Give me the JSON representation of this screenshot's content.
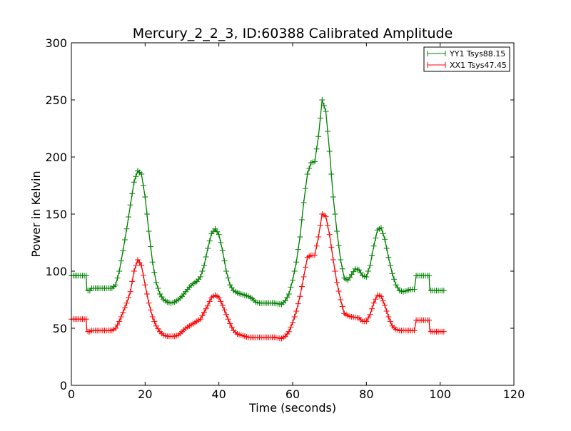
{
  "chart_data": {
    "type": "line",
    "title": "Mercury_2_2_3, ID:60388 Calibrated Amplitude",
    "xlabel": "Time (seconds)",
    "ylabel": "Power in Kelvin",
    "xlim": [
      0,
      120
    ],
    "ylim": [
      0,
      300
    ],
    "xticks": [
      0,
      20,
      40,
      60,
      80,
      100,
      120
    ],
    "yticks": [
      0,
      50,
      100,
      150,
      200,
      250,
      300
    ],
    "xtick_labels": [
      "0",
      "20",
      "40",
      "60",
      "80",
      "100",
      "120"
    ],
    "ytick_labels": [
      "0",
      "50",
      "100",
      "150",
      "200",
      "250",
      "300"
    ],
    "grid": false,
    "legend_position": "top-right",
    "marker": "+",
    "series": [
      {
        "name": "YY1 Tsys88.15",
        "color": "#008000",
        "points": [
          [
            0,
            96
          ],
          [
            4,
            96
          ],
          [
            4.2,
            83
          ],
          [
            5,
            83
          ],
          [
            5.3,
            85
          ],
          [
            11,
            85
          ],
          [
            12,
            88
          ],
          [
            13,
            100
          ],
          [
            14,
            118
          ],
          [
            15,
            137
          ],
          [
            16,
            158
          ],
          [
            17,
            178
          ],
          [
            18,
            188
          ],
          [
            19,
            185
          ],
          [
            20,
            165
          ],
          [
            21,
            135
          ],
          [
            22,
            108
          ],
          [
            23,
            90
          ],
          [
            24,
            80
          ],
          [
            25,
            75
          ],
          [
            26,
            73
          ],
          [
            27,
            72
          ],
          [
            28,
            73
          ],
          [
            29,
            75
          ],
          [
            30,
            78
          ],
          [
            31,
            82
          ],
          [
            32,
            86
          ],
          [
            33,
            89
          ],
          [
            34,
            91
          ],
          [
            35,
            95
          ],
          [
            36,
            105
          ],
          [
            37,
            120
          ],
          [
            38,
            133
          ],
          [
            39,
            137
          ],
          [
            40,
            132
          ],
          [
            41,
            118
          ],
          [
            42,
            100
          ],
          [
            43,
            88
          ],
          [
            44,
            83
          ],
          [
            45,
            81
          ],
          [
            46,
            80
          ],
          [
            47,
            79
          ],
          [
            48,
            78
          ],
          [
            49,
            76
          ],
          [
            50,
            73
          ],
          [
            51,
            72
          ],
          [
            55,
            72
          ],
          [
            57,
            71
          ],
          [
            58,
            74
          ],
          [
            59,
            80
          ],
          [
            60,
            92
          ],
          [
            61,
            108
          ],
          [
            62,
            130
          ],
          [
            63,
            160
          ],
          [
            64,
            185
          ],
          [
            65,
            195
          ],
          [
            66,
            196
          ],
          [
            67,
            218
          ],
          [
            68,
            250
          ],
          [
            69,
            240
          ],
          [
            70,
            205
          ],
          [
            71,
            165
          ],
          [
            72,
            135
          ],
          [
            73,
            110
          ],
          [
            74,
            94
          ],
          [
            75,
            92
          ],
          [
            76,
            97
          ],
          [
            77,
            102
          ],
          [
            78,
            101
          ],
          [
            79,
            96
          ],
          [
            80,
            95
          ],
          [
            81,
            105
          ],
          [
            82,
            122
          ],
          [
            83,
            136
          ],
          [
            84,
            138
          ],
          [
            85,
            128
          ],
          [
            86,
            112
          ],
          [
            87,
            98
          ],
          [
            88,
            88
          ],
          [
            89,
            83
          ],
          [
            90,
            82
          ],
          [
            92,
            84
          ],
          [
            93,
            84
          ],
          [
            93.5,
            96
          ],
          [
            97,
            96
          ],
          [
            97.2,
            83
          ],
          [
            101,
            83
          ]
        ]
      },
      {
        "name": "XX1 Tsys47.45",
        "color": "#ff0000",
        "points": [
          [
            0,
            58
          ],
          [
            4,
            58
          ],
          [
            4.2,
            47
          ],
          [
            5,
            47
          ],
          [
            5.3,
            48
          ],
          [
            11,
            48
          ],
          [
            12,
            50
          ],
          [
            13,
            56
          ],
          [
            14,
            64
          ],
          [
            15,
            72
          ],
          [
            16,
            82
          ],
          [
            17,
            100
          ],
          [
            18,
            110
          ],
          [
            19,
            105
          ],
          [
            20,
            88
          ],
          [
            21,
            72
          ],
          [
            22,
            60
          ],
          [
            23,
            52
          ],
          [
            24,
            47
          ],
          [
            25,
            44
          ],
          [
            26,
            43
          ],
          [
            28,
            43
          ],
          [
            29,
            44
          ],
          [
            30,
            47
          ],
          [
            31,
            50
          ],
          [
            32,
            52
          ],
          [
            33,
            54
          ],
          [
            34,
            56
          ],
          [
            35,
            58
          ],
          [
            36,
            64
          ],
          [
            37,
            70
          ],
          [
            38,
            77
          ],
          [
            39,
            79
          ],
          [
            40,
            77
          ],
          [
            41,
            70
          ],
          [
            42,
            62
          ],
          [
            43,
            54
          ],
          [
            44,
            48
          ],
          [
            45,
            45
          ],
          [
            46,
            44
          ],
          [
            47,
            43
          ],
          [
            48,
            42
          ],
          [
            55,
            42
          ],
          [
            57,
            41
          ],
          [
            58,
            43
          ],
          [
            59,
            47
          ],
          [
            60,
            55
          ],
          [
            61,
            65
          ],
          [
            62,
            78
          ],
          [
            63,
            95
          ],
          [
            64,
            112
          ],
          [
            65,
            114
          ],
          [
            66,
            114
          ],
          [
            67,
            130
          ],
          [
            68,
            150
          ],
          [
            69,
            148
          ],
          [
            70,
            132
          ],
          [
            71,
            110
          ],
          [
            72,
            90
          ],
          [
            73,
            75
          ],
          [
            74,
            63
          ],
          [
            75,
            61
          ],
          [
            76,
            60
          ],
          [
            78,
            59
          ],
          [
            79,
            56
          ],
          [
            80,
            56
          ],
          [
            81,
            62
          ],
          [
            82,
            72
          ],
          [
            83,
            79
          ],
          [
            84,
            78
          ],
          [
            85,
            70
          ],
          [
            86,
            60
          ],
          [
            87,
            52
          ],
          [
            88,
            49
          ],
          [
            89,
            48
          ],
          [
            92,
            48
          ],
          [
            93,
            48
          ],
          [
            93.5,
            57
          ],
          [
            97,
            57
          ],
          [
            97.2,
            47
          ],
          [
            101,
            47
          ]
        ]
      }
    ]
  }
}
